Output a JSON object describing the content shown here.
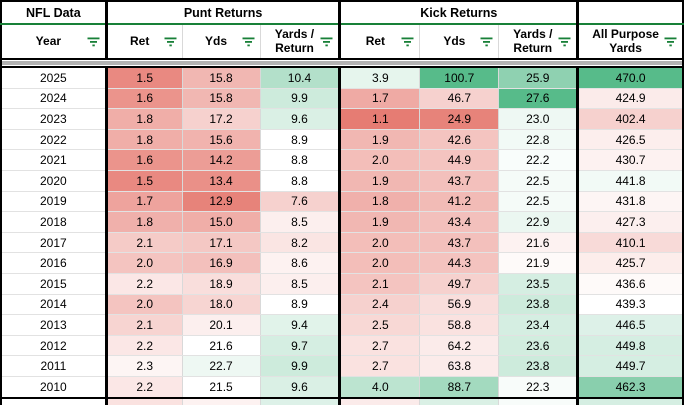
{
  "app": {
    "kind": "spreadsheet-table",
    "title": "NFL Data"
  },
  "colors": {
    "accent_green": "#188038",
    "freeze_divider_gray": "#b3b3b3",
    "gridline_gray": "#e2e2e2",
    "border_black": "#000000",
    "heat_red_anchor": "#e67c73",
    "heat_green_anchor": "#57bb8a",
    "heat_mid": "#ffffff"
  },
  "header": {
    "corner": "NFL Data",
    "groups": [
      {
        "label": "Punt Returns"
      },
      {
        "label": "Kick Returns"
      }
    ],
    "columns": [
      {
        "label": "Year"
      },
      {
        "label": "Ret"
      },
      {
        "label": "Yds"
      },
      {
        "label": "Yards / Return"
      },
      {
        "label": "Ret"
      },
      {
        "label": "Yds"
      },
      {
        "label": "Yards / Return"
      },
      {
        "label": "All Purpose Yards"
      }
    ],
    "filter_icon": "filter-funnel-icon"
  },
  "rows": [
    {
      "year": "2025",
      "cells": [
        [
          "1.5",
          "#e98981"
        ],
        [
          "15.8",
          "#f1b7b2"
        ],
        [
          "10.4",
          "#b3e0ca"
        ],
        [
          "3.9",
          "#e6f5ed"
        ],
        [
          "100.7",
          "#57bb8a"
        ],
        [
          "25.9",
          "#8fd1b1"
        ],
        [
          "470.0",
          "#57bb8a"
        ]
      ]
    },
    {
      "year": "2024",
      "cells": [
        [
          "1.6",
          "#eb948c"
        ],
        [
          "15.8",
          "#f1b7b2"
        ],
        [
          "9.9",
          "#cdebdc"
        ],
        [
          "1.7",
          "#efaaa4"
        ],
        [
          "46.7",
          "#f6d1ce"
        ],
        [
          "27.6",
          "#57bb8a"
        ],
        [
          "424.9",
          "#fbebea"
        ]
      ]
    },
    {
      "year": "2023",
      "cells": [
        [
          "1.8",
          "#f0aea8"
        ],
        [
          "17.2",
          "#f6d1ce"
        ],
        [
          "9.6",
          "#daf0e5"
        ],
        [
          "1.1",
          "#e67c73"
        ],
        [
          "24.9",
          "#e7837a"
        ],
        [
          "23.0",
          "#eef8f3"
        ],
        [
          "402.4",
          "#f6d1ce"
        ]
      ]
    },
    {
      "year": "2022",
      "cells": [
        [
          "1.8",
          "#f0aea8"
        ],
        [
          "15.6",
          "#f1b3ae"
        ],
        [
          "8.9",
          "#ffffff"
        ],
        [
          "1.9",
          "#f1b7b2"
        ],
        [
          "42.6",
          "#f4c4c0"
        ],
        [
          "22.8",
          "#f2faf6"
        ],
        [
          "426.5",
          "#fceeed"
        ]
      ]
    },
    {
      "year": "2021",
      "cells": [
        [
          "1.6",
          "#eb948c"
        ],
        [
          "14.2",
          "#ec9d96"
        ],
        [
          "8.8",
          "#ffffff"
        ],
        [
          "2.0",
          "#f3beb9"
        ],
        [
          "44.9",
          "#f4c4c0"
        ],
        [
          "22.2",
          "#f9fdfb"
        ],
        [
          "430.7",
          "#fdf2f1"
        ]
      ]
    },
    {
      "year": "2020",
      "cells": [
        [
          "1.5",
          "#e98981"
        ],
        [
          "13.4",
          "#ea9088"
        ],
        [
          "8.8",
          "#ffffff"
        ],
        [
          "1.9",
          "#f1b7b2"
        ],
        [
          "43.7",
          "#f3c0bc"
        ],
        [
          "22.5",
          "#f5fbf8"
        ],
        [
          "441.8",
          "#f2faf6"
        ]
      ]
    },
    {
      "year": "2019",
      "cells": [
        [
          "1.7",
          "#eea39d"
        ],
        [
          "12.9",
          "#e7837a"
        ],
        [
          "7.6",
          "#f6d1ce"
        ],
        [
          "1.8",
          "#f0b0ab"
        ],
        [
          "41.2",
          "#f2bbb6"
        ],
        [
          "22.5",
          "#f5fbf8"
        ],
        [
          "431.8",
          "#fdf5f4"
        ]
      ]
    },
    {
      "year": "2018",
      "cells": [
        [
          "1.8",
          "#f0b0ab"
        ],
        [
          "15.0",
          "#f0aea8"
        ],
        [
          "8.5",
          "#fcefee"
        ],
        [
          "1.9",
          "#f1b7b2"
        ],
        [
          "43.4",
          "#f3c0bc"
        ],
        [
          "22.9",
          "#ebf7f1"
        ],
        [
          "427.3",
          "#fcefee"
        ]
      ]
    },
    {
      "year": "2017",
      "cells": [
        [
          "2.1",
          "#f5cbc7"
        ],
        [
          "17.1",
          "#f4c8c4"
        ],
        [
          "8.2",
          "#fae5e3"
        ],
        [
          "2.0",
          "#f3beb9"
        ],
        [
          "43.7",
          "#f3c0bc"
        ],
        [
          "21.6",
          "#fdf2f1"
        ],
        [
          "410.1",
          "#f8dad8"
        ]
      ]
    },
    {
      "year": "2016",
      "cells": [
        [
          "2.0",
          "#f4c4c0"
        ],
        [
          "16.9",
          "#f3c0bc"
        ],
        [
          "8.6",
          "#fdf2f1"
        ],
        [
          "2.0",
          "#f3beb9"
        ],
        [
          "44.3",
          "#f4c3bf"
        ],
        [
          "21.9",
          "#fefaf9"
        ],
        [
          "425.7",
          "#fcedeb"
        ]
      ]
    },
    {
      "year": "2015",
      "cells": [
        [
          "2.2",
          "#fbe7e6"
        ],
        [
          "18.9",
          "#f9dedc"
        ],
        [
          "8.5",
          "#fcefee"
        ],
        [
          "2.1",
          "#f4c4c0"
        ],
        [
          "49.7",
          "#f6d1ce"
        ],
        [
          "23.5",
          "#d5eee2"
        ],
        [
          "436.6",
          "#fefaf9"
        ]
      ]
    },
    {
      "year": "2014",
      "cells": [
        [
          "2.0",
          "#f4c4c0"
        ],
        [
          "18.0",
          "#f7d5d2"
        ],
        [
          "8.9",
          "#ffffff"
        ],
        [
          "2.4",
          "#f6d1ce"
        ],
        [
          "56.9",
          "#f9dedc"
        ],
        [
          "23.8",
          "#cdebdc"
        ],
        [
          "439.3",
          "#ffffff"
        ]
      ]
    },
    {
      "year": "2013",
      "cells": [
        [
          "2.1",
          "#f7d4d1"
        ],
        [
          "20.1",
          "#fcefee"
        ],
        [
          "9.4",
          "#e1f3ea"
        ],
        [
          "2.5",
          "#f8d8d5"
        ],
        [
          "58.8",
          "#fae2e0"
        ],
        [
          "23.4",
          "#d5eee2"
        ],
        [
          "446.5",
          "#ddf1e8"
        ]
      ]
    },
    {
      "year": "2012",
      "cells": [
        [
          "2.2",
          "#fbe7e6"
        ],
        [
          "21.6",
          "#ffffff"
        ],
        [
          "9.7",
          "#d5eee2"
        ],
        [
          "2.7",
          "#fae2e0"
        ],
        [
          "64.2",
          "#fbebea"
        ],
        [
          "23.6",
          "#d2eddf"
        ],
        [
          "449.8",
          "#d5eee2"
        ]
      ]
    },
    {
      "year": "2011",
      "cells": [
        [
          "2.3",
          "#fdf5f4"
        ],
        [
          "22.7",
          "#eef8f3"
        ],
        [
          "9.9",
          "#cdebdc"
        ],
        [
          "2.7",
          "#fae2e0"
        ],
        [
          "63.8",
          "#fbebea"
        ],
        [
          "23.8",
          "#cdebdc"
        ],
        [
          "449.7",
          "#d5eee2"
        ]
      ]
    },
    {
      "year": "2010",
      "cells": [
        [
          "2.2",
          "#fbe7e6"
        ],
        [
          "21.5",
          "#ffffff"
        ],
        [
          "9.6",
          "#daf0e5"
        ],
        [
          "4.0",
          "#bce4d0"
        ],
        [
          "88.7",
          "#a3dabf"
        ],
        [
          "22.3",
          "#f8fcfa"
        ],
        [
          "462.3",
          "#89cfad"
        ]
      ]
    }
  ],
  "partial_row": {
    "colors": [
      "#ffffff",
      "#fae2e0",
      "#fdf2f1",
      "#ddf1e8",
      "#fbebea",
      "#daf0e5",
      "#f8fcfa",
      "#d5eee2"
    ]
  }
}
